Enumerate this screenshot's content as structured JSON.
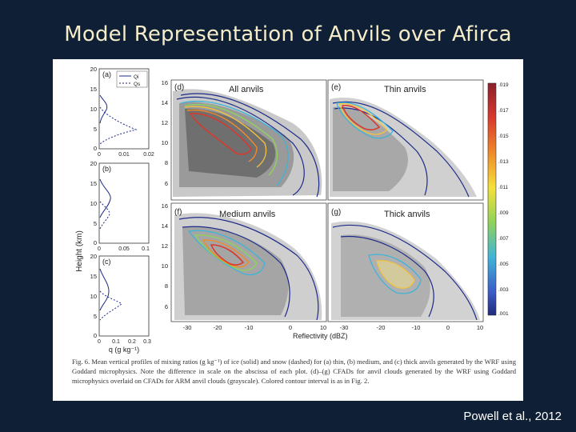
{
  "slide": {
    "title": "Model Representation of Anvils over Afirca",
    "credit": "Powell et al., 2012"
  },
  "figure": {
    "left_column": {
      "ylabel": "Height (km)",
      "xlabel": "q (g kg⁻¹)",
      "legend": [
        "Qi",
        "Qs"
      ],
      "panels": [
        {
          "label": "(a)",
          "xticks": [
            "0",
            "0.01",
            "0.02"
          ],
          "yticks": [
            "20",
            "15",
            "10",
            "5",
            "0"
          ]
        },
        {
          "label": "(b)",
          "xticks": [
            "0",
            "0.05",
            "0.1"
          ],
          "yticks": [
            "20",
            "15",
            "10",
            "5",
            "0"
          ]
        },
        {
          "label": "(c)",
          "xticks": [
            "0",
            "0.1",
            "0.2",
            "0.3"
          ],
          "yticks": [
            "20",
            "15",
            "10",
            "5",
            "0"
          ]
        }
      ]
    },
    "cfad_panels": [
      {
        "label": "(d)",
        "title": "All anvils"
      },
      {
        "label": "(e)",
        "title": "Thin anvils"
      },
      {
        "label": "(f)",
        "title": "Medium anvils"
      },
      {
        "label": "(g)",
        "title": "Thick anvils"
      }
    ],
    "cfad_yticks": [
      "16",
      "14",
      "12",
      "10",
      "8",
      "6"
    ],
    "cfad_xticks": [
      "-30",
      "-20",
      "-10",
      "0",
      "10"
    ],
    "cfad_xlabel": "Reflectivity (dBZ)",
    "colorbar_ticks": [
      ".019",
      ".017",
      ".015",
      ".013",
      ".011",
      ".009",
      ".007",
      ".005",
      ".003",
      ".001"
    ],
    "caption": "Fig. 6. Mean vertical profiles of mixing ratios (g kg⁻¹) of ice (solid) and snow (dashed) for (a) thin, (b) medium, and (c) thick anvils generated by the WRF using Goddard microphysics. Note the difference in scale on the abscissa of each plot. (d)–(g) CFADs for anvil clouds generated by the WRF using Goddard microphysics overlaid on CFADs for ARM anvil clouds (grayscale). Colored contour interval is as in Fig. 2."
  }
}
